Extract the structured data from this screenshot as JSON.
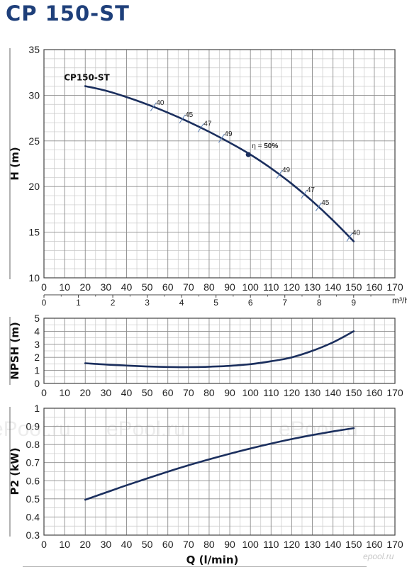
{
  "title": "CP 150-ST",
  "watermark": "ePool.ru",
  "corner_mark": "epool.ru",
  "chart_data": [
    {
      "type": "line",
      "ylabel": "H (m)",
      "xlim": [
        0,
        170
      ],
      "ylim": [
        10,
        35
      ],
      "xticks": [
        "0",
        "10",
        "20",
        "30",
        "40",
        "50",
        "60",
        "70",
        "80",
        "90",
        "100",
        "110",
        "120",
        "130",
        "140",
        "150",
        "160",
        "170"
      ],
      "yticks": [
        "10",
        "15",
        "20",
        "25",
        "30",
        "35"
      ],
      "secondary_x": {
        "unit": "m³/h",
        "ticks": [
          "0",
          "1",
          "2",
          "3",
          "4",
          "5",
          "6",
          "7",
          "8",
          "9"
        ]
      },
      "grid": true,
      "series": [
        {
          "name": "CP150-ST",
          "x": [
            20,
            30,
            40,
            50,
            60,
            70,
            80,
            90,
            100,
            110,
            120,
            130,
            140,
            150
          ],
          "y": [
            31.0,
            30.5,
            29.8,
            29.0,
            28.1,
            27.1,
            26.0,
            24.8,
            23.5,
            22.0,
            20.3,
            18.4,
            16.3,
            14.0
          ]
        }
      ],
      "efficiency_labels": [
        {
          "x": 53,
          "label": "40"
        },
        {
          "x": 67,
          "label": "45"
        },
        {
          "x": 76,
          "label": "47"
        },
        {
          "x": 86,
          "label": "49"
        },
        {
          "x": 114,
          "label": "49"
        },
        {
          "x": 126,
          "label": "47"
        },
        {
          "x": 133,
          "label": "45"
        },
        {
          "x": 148,
          "label": "40"
        }
      ],
      "best_point": {
        "x": 99,
        "y": 23.5,
        "eta_symbol": "η = ",
        "eta_value": "50%"
      }
    },
    {
      "type": "line",
      "ylabel": "NPSH (m)",
      "xlim": [
        0,
        170
      ],
      "ylim": [
        0,
        5
      ],
      "xticks": [
        "0",
        "10",
        "20",
        "30",
        "40",
        "50",
        "60",
        "70",
        "80",
        "90",
        "100",
        "110",
        "120",
        "130",
        "140",
        "150",
        "160",
        "170"
      ],
      "yticks": [
        "0",
        "1",
        "2",
        "3",
        "4",
        "5"
      ],
      "grid": true,
      "series": [
        {
          "x": [
            20,
            30,
            40,
            50,
            60,
            70,
            80,
            90,
            100,
            110,
            120,
            130,
            140,
            150
          ],
          "y": [
            1.55,
            1.45,
            1.37,
            1.3,
            1.26,
            1.25,
            1.28,
            1.35,
            1.48,
            1.7,
            2.0,
            2.5,
            3.15,
            4.0
          ]
        }
      ]
    },
    {
      "type": "line",
      "ylabel": "P2 (kW)",
      "xlabel": "Q (l/min)",
      "xlim": [
        0,
        170
      ],
      "ylim": [
        0.3,
        1
      ],
      "xticks": [
        "0",
        "10",
        "20",
        "30",
        "40",
        "50",
        "60",
        "70",
        "80",
        "90",
        "100",
        "110",
        "120",
        "130",
        "140",
        "150",
        "160",
        "170"
      ],
      "yticks": [
        "0.3",
        "0.4",
        "0.5",
        "0.6",
        "0.7",
        "0.8",
        "0.9",
        "1"
      ],
      "grid": true,
      "series": [
        {
          "x": [
            20,
            30,
            40,
            50,
            60,
            70,
            80,
            90,
            100,
            110,
            120,
            130,
            140,
            150
          ],
          "y": [
            0.495,
            0.535,
            0.575,
            0.613,
            0.65,
            0.685,
            0.718,
            0.749,
            0.778,
            0.805,
            0.83,
            0.852,
            0.872,
            0.89
          ]
        }
      ]
    }
  ]
}
